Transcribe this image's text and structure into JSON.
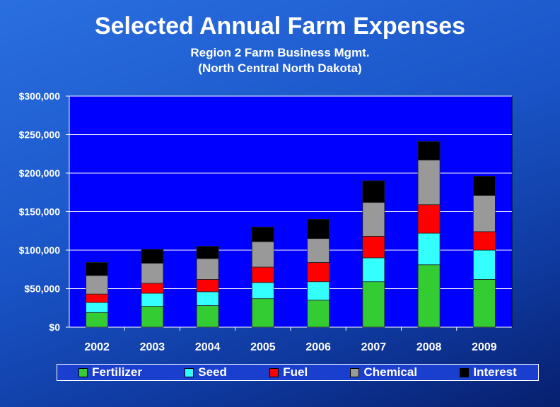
{
  "chart_data": {
    "type": "stacked-bar",
    "title": "Selected Annual Farm Expenses",
    "subtitle_lines": [
      "Region 2 Farm Business Mgmt.",
      "(North Central North Dakota)"
    ],
    "categories": [
      "2002",
      "2003",
      "2004",
      "2005",
      "2006",
      "2007",
      "2008",
      "2009"
    ],
    "series": [
      {
        "name": "Fertilizer",
        "color": "#33cc33",
        "values": [
          19000,
          27000,
          28000,
          37000,
          35000,
          59000,
          81000,
          62000
        ]
      },
      {
        "name": "Seed",
        "color": "#33ffff",
        "values": [
          13000,
          17000,
          18000,
          21000,
          24000,
          31000,
          41000,
          38000
        ]
      },
      {
        "name": "Fuel",
        "color": "#ff0000",
        "values": [
          11000,
          13000,
          16000,
          20000,
          25000,
          28000,
          37000,
          24000
        ]
      },
      {
        "name": "Chemical",
        "color": "#999999",
        "values": [
          24000,
          26000,
          27000,
          33000,
          31000,
          44000,
          58000,
          47000
        ]
      },
      {
        "name": "Interest",
        "color": "#000000",
        "values": [
          17000,
          18000,
          16000,
          19000,
          25000,
          28000,
          24000,
          25000
        ]
      }
    ],
    "ylim": [
      0,
      300000
    ],
    "yticks": [
      0,
      50000,
      100000,
      150000,
      200000,
      250000,
      300000
    ],
    "ytick_labels": [
      "$0",
      "$50,000",
      "$100,000",
      "$150,000",
      "$200,000",
      "$250,000",
      "$300,000"
    ],
    "xlabel": "",
    "ylabel": "",
    "legend_position": "bottom",
    "plot_background": "#0000ff"
  }
}
